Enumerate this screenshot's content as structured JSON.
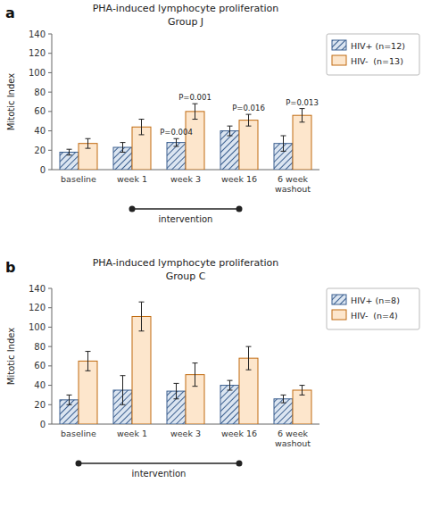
{
  "chart_data": [
    {
      "type": "bar",
      "title": "PHA-induced lymphocyte proliferation",
      "subtitle": "Group J",
      "categories": [
        "baseline",
        "week 1",
        "week 3",
        "week 16",
        "6 week\nwashout"
      ],
      "series": [
        {
          "name": "HIV+ (n=12)",
          "values": [
            18,
            23,
            28,
            40,
            27
          ],
          "errors": [
            3,
            5,
            4,
            5,
            8
          ]
        },
        {
          "name": "HIV-  (n=13)",
          "values": [
            27,
            44,
            60,
            51,
            56
          ],
          "errors": [
            5,
            8,
            8,
            6,
            7
          ]
        }
      ],
      "ylabel": "Mitotic Index",
      "ylim": [
        0,
        140
      ],
      "yticks": [
        0,
        20,
        40,
        60,
        80,
        100,
        120,
        140
      ],
      "legend": "right",
      "annotations": [
        {
          "text": "a"
        },
        {
          "text": "P=0.001",
          "category": "week 3",
          "series": "HIV-  (n=13)"
        },
        {
          "text": "P=0.004",
          "category": "week 3",
          "series": "HIV+ (n=12)"
        },
        {
          "text": "P=0.016",
          "category": "week 16",
          "series": "HIV-  (n=13)"
        },
        {
          "text": "P=0.013",
          "category": "6 week\nwashout",
          "series": "HIV-  (n=13)"
        },
        {
          "text": "intervention",
          "from": "week 1",
          "to": "week 16"
        }
      ]
    },
    {
      "type": "bar",
      "title": "PHA-induced lymphocyte proliferation",
      "subtitle": "Group C",
      "categories": [
        "baseline",
        "week 1",
        "week 3",
        "week 16",
        "6 week\nwashout"
      ],
      "series": [
        {
          "name": "HIV+ (n=8)",
          "values": [
            25,
            35,
            34,
            40,
            26
          ],
          "errors": [
            5,
            15,
            8,
            5,
            4
          ]
        },
        {
          "name": "HIV-  (n=4)",
          "values": [
            65,
            111,
            51,
            68,
            35
          ],
          "errors": [
            10,
            15,
            12,
            12,
            5
          ]
        }
      ],
      "ylabel": "Mitotic Index",
      "ylim": [
        0,
        140
      ],
      "yticks": [
        0,
        20,
        40,
        60,
        80,
        100,
        120,
        140
      ],
      "legend": "right",
      "annotations": [
        {
          "text": "b"
        },
        {
          "text": "intervention",
          "from": "baseline",
          "to": "week 16"
        }
      ]
    }
  ]
}
